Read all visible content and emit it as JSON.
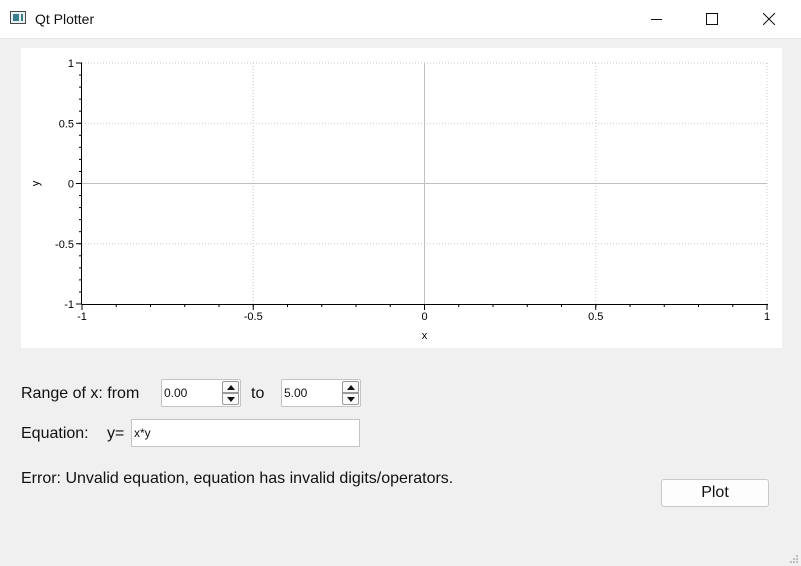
{
  "window": {
    "title": "Qt Plotter"
  },
  "chart_data": {
    "type": "line",
    "xlabel": "x",
    "ylabel": "y",
    "xlim": [
      -1,
      1
    ],
    "ylim": [
      -1,
      1
    ],
    "x_ticks": [
      -1,
      -0.5,
      0,
      0.5,
      1
    ],
    "y_ticks": [
      -1,
      -0.5,
      0,
      0.5,
      1
    ],
    "x_tick_labels": [
      "-1",
      "-0.5",
      "0",
      "0.5",
      "1"
    ],
    "y_tick_labels": [
      "-1",
      "-0.5",
      "0",
      "0.5",
      "1"
    ],
    "grid": true,
    "series": []
  },
  "range": {
    "label": "Range of x: from",
    "from_value": "0.00",
    "to_label": "to",
    "to_value": "5.00"
  },
  "equation": {
    "label": "Equation:",
    "prefix": "y=",
    "value": "x*y"
  },
  "error_text": "Error: Unvalid equation, equation has invalid digits/operators.",
  "plot_button_label": "Plot"
}
